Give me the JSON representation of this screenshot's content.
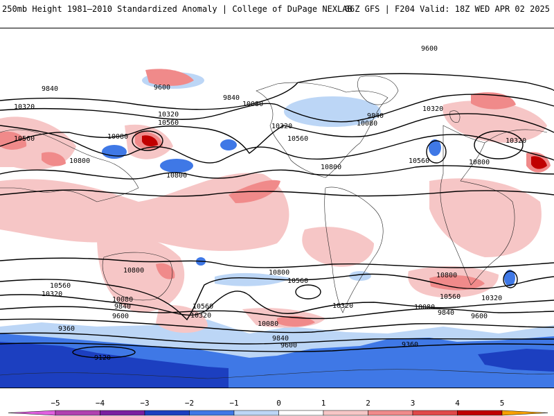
{
  "header": {
    "title": "250mb Height 1981–2010 Standardized Anomaly | College of DuPage NEXLAB",
    "run": "06Z GFS | F204 Valid: 18Z WED APR 02 2025"
  },
  "contour_labels": {
    "c9600": "9600",
    "c9840": "9840",
    "c10080": "10080",
    "c10320": "10320",
    "c10560": "10560",
    "c10800": "10800",
    "c9360": "9360",
    "c9120": "9120"
  },
  "colorbar": {
    "ticks": [
      "−5",
      "−4",
      "−3",
      "−2",
      "−1",
      "0",
      "1",
      "2",
      "3",
      "4",
      "5"
    ],
    "colors": {
      "neg5": "#b040b0",
      "neg4": "#7a1fa0",
      "neg3": "#1c3fc0",
      "neg2": "#3f78e6",
      "neg1": "#bcd6f6",
      "zero": "#ffffff",
      "pos1": "#f6c6c6",
      "pos2": "#f08a8a",
      "pos3": "#e04848",
      "pos4": "#c00000",
      "pos5": "#f6a000"
    }
  }
}
